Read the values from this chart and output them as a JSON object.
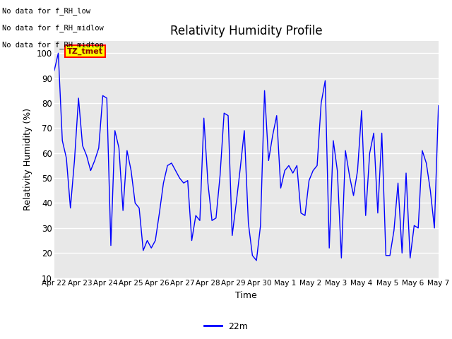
{
  "title": "Relativity Humidity Profile",
  "xlabel": "Time",
  "ylabel": "Relativity Humidity (%)",
  "legend_label": "22m",
  "legend_color": "blue",
  "no_data_texts": [
    "No data for f_RH_low",
    "No data for f_RH_midlow",
    "No data for f_RH_midtop"
  ],
  "tz_tmet_label": "TZ_tmet",
  "ylim": [
    10,
    105
  ],
  "yticks": [
    10,
    20,
    30,
    40,
    50,
    60,
    70,
    80,
    90,
    100
  ],
  "xtick_labels": [
    "Apr 22",
    "Apr 23",
    "Apr 24",
    "Apr 25",
    "Apr 26",
    "Apr 27",
    "Apr 28",
    "Apr 29",
    "Apr 30",
    "May 1",
    "May 2",
    "May 3",
    "May 4",
    "May 5",
    "May 6",
    "May 7"
  ],
  "line_color": "blue",
  "axes_bg_color": "#e8e8e8",
  "y_values": [
    93,
    100,
    65,
    58,
    38,
    57,
    82,
    63,
    59,
    53,
    57,
    62,
    83,
    82,
    23,
    69,
    62,
    37,
    61,
    53,
    40,
    38,
    21,
    25,
    22,
    25,
    36,
    48,
    55,
    56,
    53,
    50,
    48,
    49,
    25,
    35,
    33,
    74,
    48,
    33,
    34,
    51,
    76,
    75,
    27,
    40,
    54,
    69,
    32,
    19,
    17,
    31,
    85,
    57,
    67,
    75,
    46,
    53,
    55,
    52,
    55,
    36,
    35,
    49,
    53,
    55,
    80,
    89,
    22,
    65,
    53,
    18,
    61,
    51,
    43,
    53,
    77,
    35,
    60,
    68,
    36,
    68,
    19,
    19,
    29,
    48,
    20,
    52,
    18,
    31,
    30,
    61,
    56,
    45,
    30,
    79
  ]
}
